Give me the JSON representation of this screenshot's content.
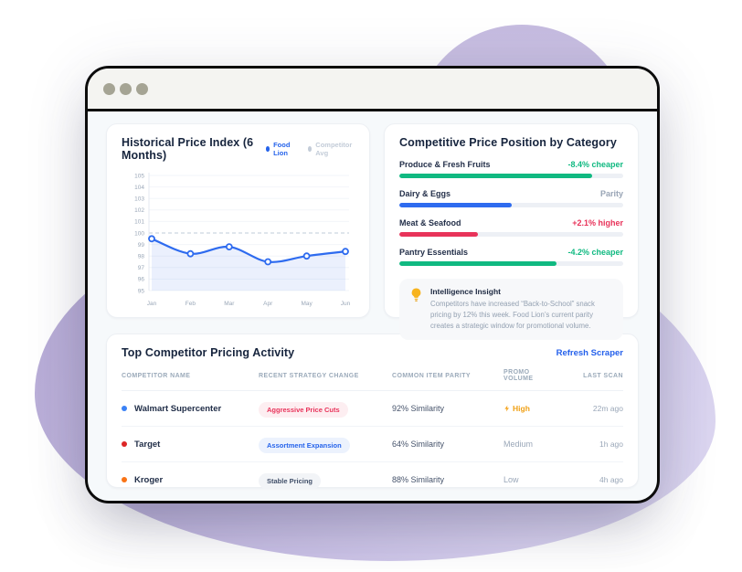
{
  "window": {
    "controls": [
      "dot",
      "dot",
      "dot"
    ]
  },
  "price_chart": {
    "title": "Historical Price Index (6 Months)",
    "legend": [
      {
        "label": "Food Lion",
        "color": "#2563eb"
      },
      {
        "label": "Competitor Avg",
        "color": "#c3ccd8"
      }
    ]
  },
  "chart_data": {
    "type": "line",
    "title": "Historical Price Index (6 Months)",
    "x": [
      "Jan",
      "Feb",
      "Mar",
      "Apr",
      "May",
      "Jun"
    ],
    "series": [
      {
        "name": "Food Lion",
        "values": [
          99.5,
          98.2,
          98.8,
          97.5,
          98.0,
          98.4
        ],
        "color": "#2e6bef",
        "style": "solid",
        "markers": true,
        "area_fill": true
      },
      {
        "name": "Competitor Avg",
        "values": [
          100,
          100,
          100,
          100,
          100,
          100
        ],
        "color": "#ccd5e0",
        "style": "dashed",
        "markers": false
      }
    ],
    "ylim": [
      95,
      105
    ],
    "yticks": [
      95,
      96,
      97,
      98,
      99,
      100,
      101,
      102,
      103,
      104,
      105
    ],
    "grid": true,
    "legend_position": "top-right"
  },
  "category_position": {
    "title": "Competitive Price Position by Category",
    "rows": [
      {
        "label": "Produce & Fresh Fruits",
        "value": "-8.4% cheaper",
        "value_color": "#10b981",
        "pct": 86,
        "color": "#10b981"
      },
      {
        "label": "Dairy & Eggs",
        "value": "Parity",
        "value_color": "#98a4b5",
        "pct": 50,
        "color": "#2e6bef"
      },
      {
        "label": "Meat & Seafood",
        "value": "+2.1% higher",
        "value_color": "#e8335a",
        "pct": 35,
        "color": "#e8335a"
      },
      {
        "label": "Pantry Essentials",
        "value": "-4.2% cheaper",
        "value_color": "#10b981",
        "pct": 70,
        "color": "#10b981"
      }
    ],
    "insight": {
      "icon": "lightbulb-icon",
      "title": "Intelligence Insight",
      "body": "Competitors have increased “Back-to-School” snack pricing by 12% this week. Food Lion’s current parity creates a strategic window for promotional volume."
    }
  },
  "competitor_table": {
    "title": "Top Competitor Pricing Activity",
    "action": "Refresh Scraper",
    "columns": [
      "COMPETITOR NAME",
      "RECENT STRATEGY CHANGE",
      "COMMON ITEM PARITY",
      "PROMO VOLUME",
      "LAST SCAN"
    ],
    "rows": [
      {
        "name": "Walmart Supercenter",
        "dot_color": "#3b82f6",
        "strategy": "Aggressive Price Cuts",
        "strategy_type": "red",
        "parity": "92% Similarity",
        "promo": "High",
        "promo_type": "high",
        "last_scan": "22m ago"
      },
      {
        "name": "Target",
        "dot_color": "#dc2626",
        "strategy": "Assortment Expansion",
        "strategy_type": "blue",
        "parity": "64% Similarity",
        "promo": "Medium",
        "promo_type": "normal",
        "last_scan": "1h ago"
      },
      {
        "name": "Kroger",
        "dot_color": "#f97316",
        "strategy": "Stable Pricing",
        "strategy_type": "gray",
        "parity": "88% Similarity",
        "promo": "Low",
        "promo_type": "normal",
        "last_scan": "4h ago"
      }
    ]
  }
}
